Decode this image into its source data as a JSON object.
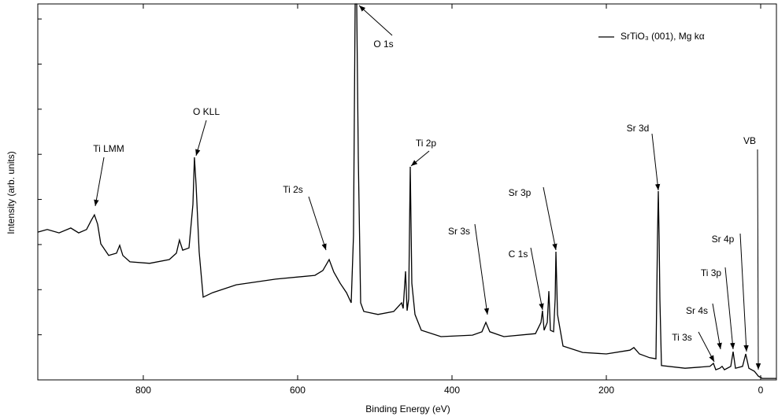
{
  "chart_data": {
    "type": "line",
    "xlabel": "Binding Energy (eV)",
    "ylabel": "Intensity (arb. units)",
    "x": [
      936.7,
      924.5,
      909.2,
      893.9,
      883.7,
      873.5,
      867.3,
      863.3,
      859.2,
      855.1,
      844.9,
      834.7,
      830.6,
      826.5,
      817.3,
      791.8,
      766.3,
      757.1,
      753.1,
      749.0,
      740.8,
      735.7,
      733.7,
      731.6,
      727.6,
      722.4,
      710.2,
      679.6,
      628.6,
      577.6,
      567.3,
      559.2,
      553.1,
      544.9,
      536.7,
      530.6,
      527.6,
      525.5,
      523.5,
      521.4,
      518.4,
      514.3,
      495.9,
      475.5,
      465.3,
      463.3,
      460.2,
      458.2,
      456.1,
      454.1,
      452.0,
      447.9,
      439.8,
      414.3,
      373.5,
      361.2,
      356.1,
      351.0,
      332.7,
      291.8,
      284.7,
      282.7,
      280.6,
      276.5,
      274.5,
      272.4,
      268.4,
      266.3,
      265.3,
      263.3,
      256.1,
      230.6,
      200.0,
      169.4,
      164.3,
      157.1,
      143.9,
      135.7,
      133.7,
      132.7,
      131.6,
      130.6,
      128.6,
      98.0,
      65.7,
      61.2,
      58.2,
      53.1,
      50.0,
      46.9,
      38.8,
      35.7,
      32.7,
      23.5,
      19.4,
      15.3,
      8.2,
      3.1,
      -2.0,
      -20.4
    ],
    "series": [
      {
        "name": "SrTiO₃ (001), Mg kα",
        "color": "#000000",
        "values": [
          39.3,
          40.0,
          39.1,
          40.4,
          39.1,
          40.0,
          42.5,
          43.9,
          41.4,
          36.2,
          33.1,
          33.7,
          35.8,
          33.1,
          31.4,
          31.0,
          32.0,
          33.7,
          37.2,
          34.5,
          35.1,
          46.7,
          59.2,
          51.9,
          34.1,
          22.0,
          23.2,
          25.3,
          26.8,
          27.8,
          29.1,
          32.0,
          28.7,
          25.7,
          23.2,
          20.5,
          38.3,
          100,
          100,
          59.2,
          20.5,
          18.2,
          17.4,
          18.2,
          20.5,
          19.0,
          28.9,
          18.4,
          21.5,
          56.7,
          25.7,
          17.4,
          13.2,
          11.5,
          11.9,
          12.8,
          15.3,
          12.8,
          11.5,
          12.3,
          15.3,
          18.4,
          13.2,
          15.3,
          23.6,
          13.2,
          12.8,
          21.5,
          34.1,
          17.4,
          9.0,
          7.3,
          6.9,
          7.9,
          8.6,
          6.9,
          5.9,
          5.6,
          38.3,
          50.2,
          38.3,
          21.5,
          3.8,
          3.1,
          3.6,
          4.4,
          2.7,
          3.1,
          3.6,
          2.7,
          3.6,
          7.5,
          3.1,
          3.6,
          6.9,
          3.1,
          2.3,
          1.0,
          0.4,
          0.4
        ]
      }
    ],
    "xlim": [
      936.7,
      -20.4
    ],
    "xticks": [
      800,
      600,
      400,
      200,
      0
    ],
    "ylim": [
      0,
      100
    ],
    "yticks": [
      0,
      12,
      24,
      36,
      48,
      60,
      72,
      84,
      96
    ],
    "annotations": [
      "Ti LMM",
      "O KLL",
      "Ti 2s",
      "O 1s",
      "Ti 2p",
      "Sr 3d",
      "Sr 3p",
      "Sr 3s",
      "C 1s",
      "Sr 4p",
      "Ti 3p",
      "Sr 4s",
      "Ti 3s",
      "VB"
    ],
    "legend": "upper right"
  }
}
